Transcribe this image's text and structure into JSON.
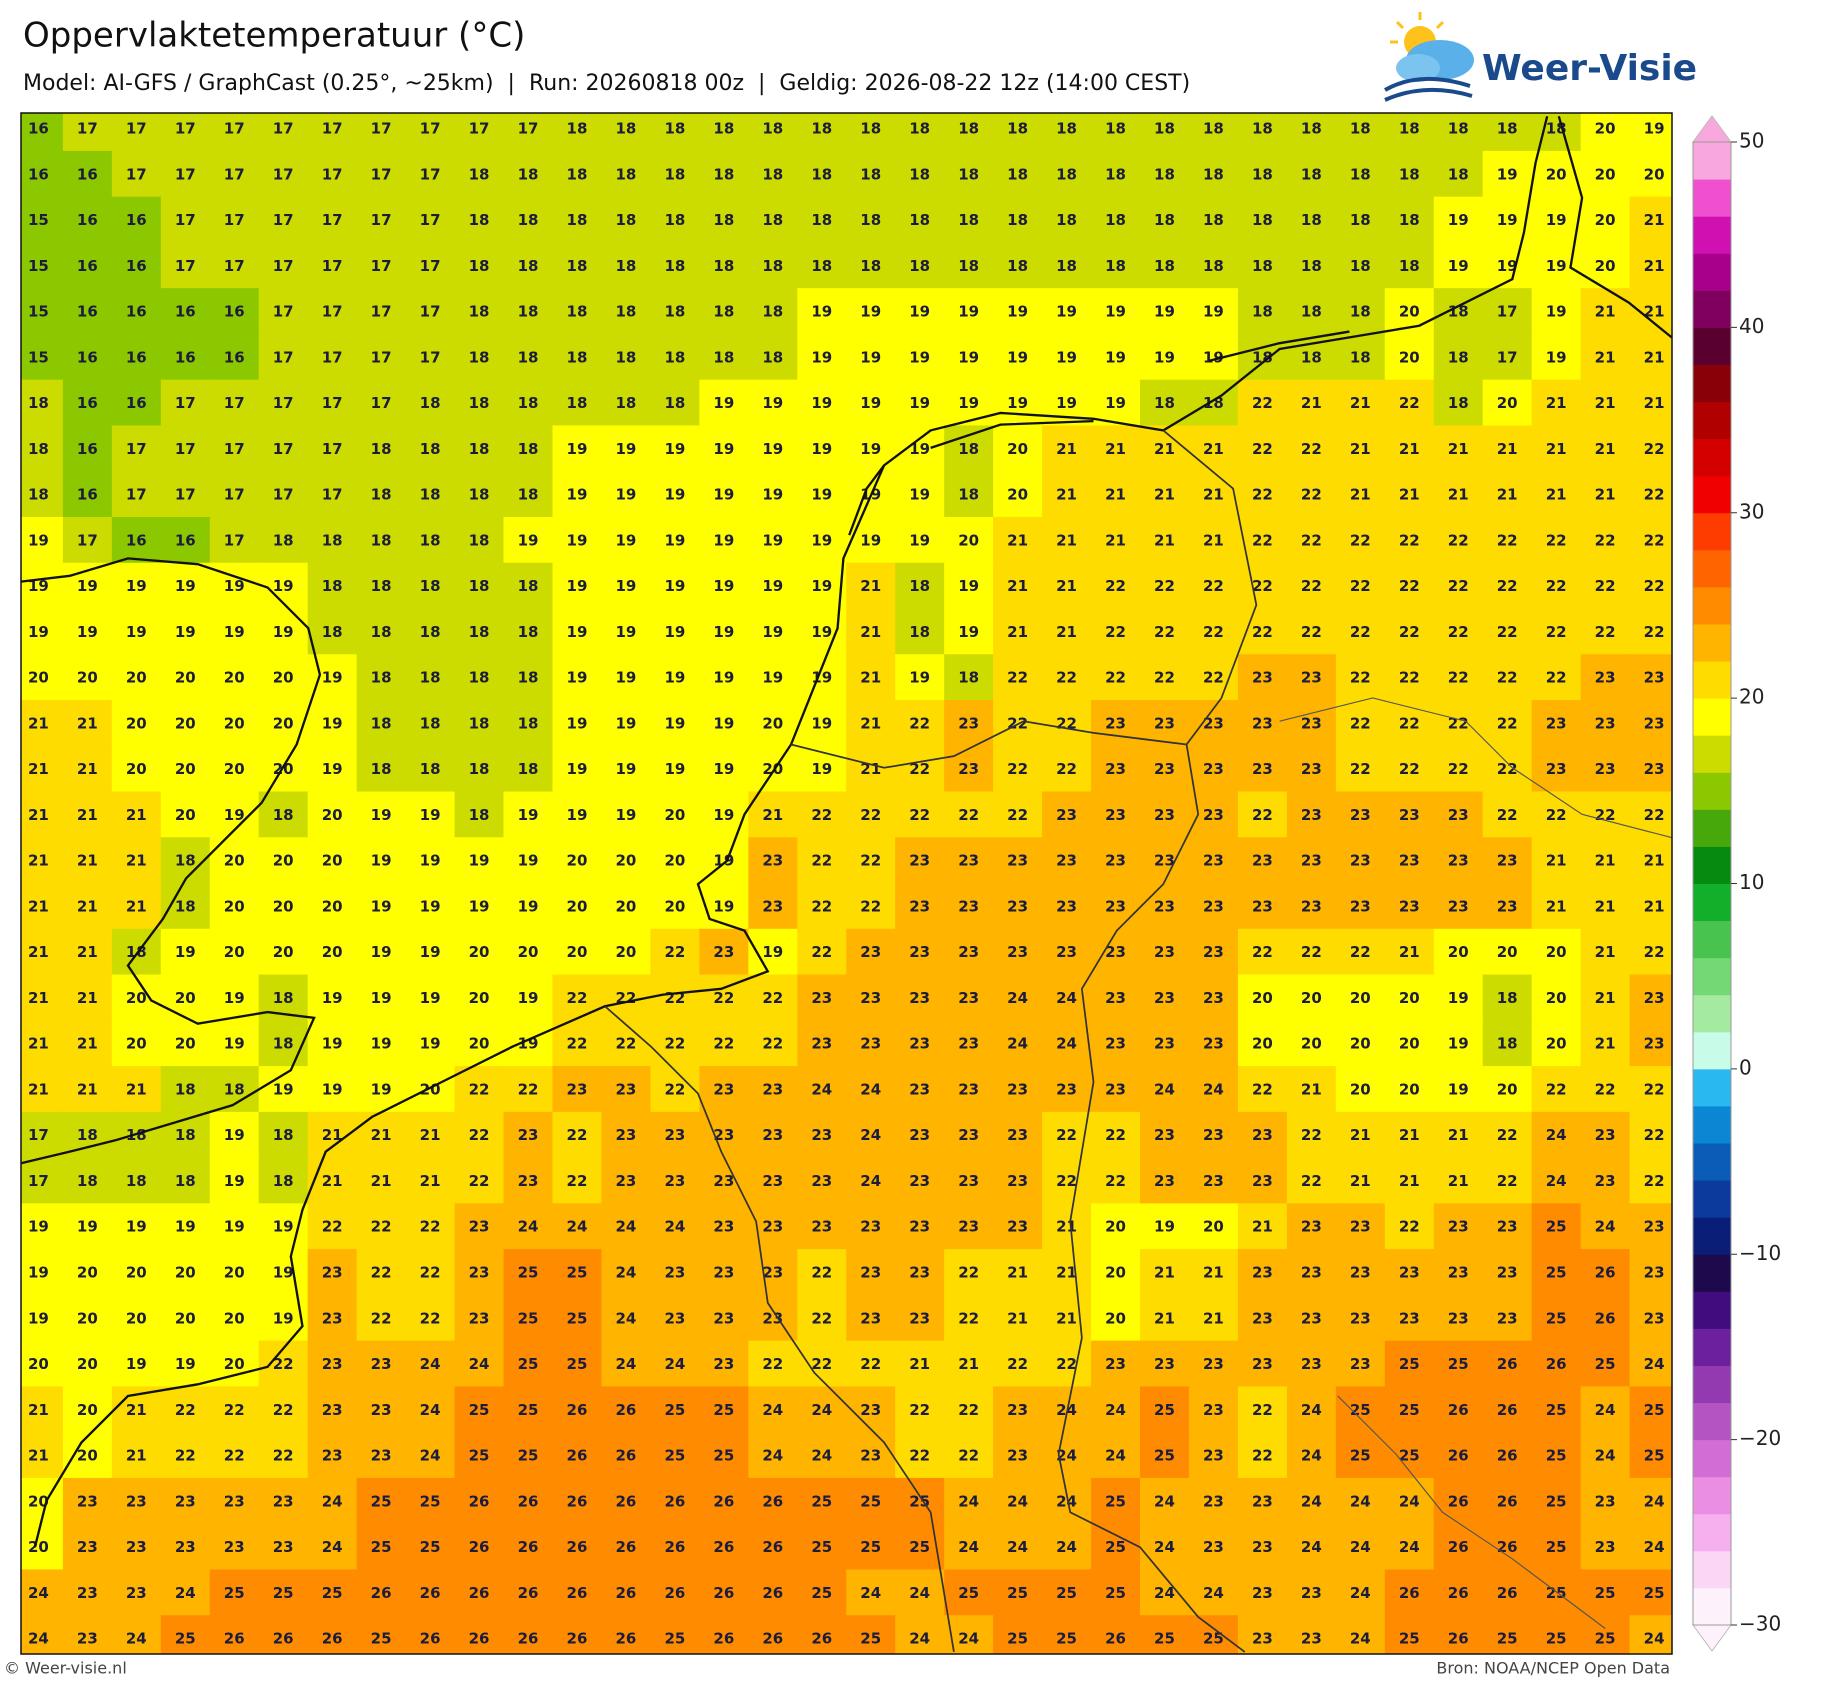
{
  "header": {
    "title": "Oppervlaktetemperatuur (°C)",
    "subtitle": "Model: AI-GFS / GraphCast (0.25°, ~25km)  |  Run: 20260818 00z  |  Geldig: 2026-08-22 12z (14:00 CEST)",
    "logo": "Weer-Visie"
  },
  "map": {
    "rows": [
      [
        16,
        17,
        17,
        17,
        17,
        17,
        17,
        17,
        17,
        17,
        17,
        18,
        18,
        18,
        18,
        18,
        18,
        18,
        18,
        18,
        18,
        18,
        18,
        18,
        18,
        18,
        18,
        18,
        18,
        18,
        18,
        18,
        20,
        19
      ],
      [
        16,
        16,
        17,
        17,
        17,
        17,
        17,
        17,
        17,
        18,
        18,
        18,
        18,
        18,
        18,
        18,
        18,
        18,
        18,
        18,
        18,
        18,
        18,
        18,
        18,
        18,
        18,
        18,
        18,
        18,
        19,
        20,
        20,
        20
      ],
      [
        15,
        16,
        16,
        17,
        17,
        17,
        17,
        17,
        17,
        18,
        18,
        18,
        18,
        18,
        18,
        18,
        18,
        18,
        18,
        18,
        18,
        18,
        18,
        18,
        18,
        18,
        18,
        18,
        18,
        19,
        19,
        19,
        20,
        21
      ],
      [
        15,
        16,
        16,
        17,
        17,
        17,
        17,
        17,
        17,
        18,
        18,
        18,
        18,
        18,
        18,
        18,
        18,
        18,
        18,
        18,
        18,
        18,
        18,
        18,
        18,
        18,
        18,
        18,
        18,
        19,
        19,
        19,
        20,
        21
      ],
      [
        15,
        16,
        16,
        16,
        16,
        17,
        17,
        17,
        17,
        18,
        18,
        18,
        18,
        18,
        18,
        18,
        19,
        19,
        19,
        19,
        19,
        19,
        19,
        19,
        19,
        18,
        18,
        18,
        20,
        18,
        17,
        19,
        21,
        21
      ],
      [
        15,
        16,
        16,
        16,
        16,
        17,
        17,
        17,
        17,
        18,
        18,
        18,
        18,
        18,
        18,
        18,
        19,
        19,
        19,
        19,
        19,
        19,
        19,
        19,
        19,
        18,
        18,
        18,
        20,
        18,
        17,
        19,
        21,
        21
      ],
      [
        18,
        16,
        16,
        17,
        17,
        17,
        17,
        17,
        18,
        18,
        18,
        18,
        18,
        18,
        19,
        19,
        19,
        19,
        19,
        19,
        19,
        19,
        19,
        18,
        18,
        22,
        21,
        21,
        22,
        18,
        20,
        21,
        21,
        21
      ],
      [
        18,
        16,
        17,
        17,
        17,
        17,
        17,
        18,
        18,
        18,
        18,
        19,
        19,
        19,
        19,
        19,
        19,
        19,
        19,
        18,
        20,
        21,
        21,
        21,
        21,
        22,
        22,
        21,
        21,
        21,
        21,
        21,
        21,
        22
      ],
      [
        18,
        16,
        17,
        17,
        17,
        17,
        17,
        18,
        18,
        18,
        18,
        19,
        19,
        19,
        19,
        19,
        19,
        19,
        19,
        18,
        20,
        21,
        21,
        21,
        21,
        22,
        22,
        21,
        21,
        21,
        21,
        21,
        21,
        22
      ],
      [
        19,
        17,
        16,
        16,
        17,
        18,
        18,
        18,
        18,
        18,
        19,
        19,
        19,
        19,
        19,
        19,
        19,
        19,
        19,
        20,
        21,
        21,
        21,
        21,
        21,
        22,
        22,
        22,
        22,
        22,
        22,
        22,
        22,
        22
      ],
      [
        19,
        19,
        19,
        19,
        19,
        19,
        18,
        18,
        18,
        18,
        18,
        19,
        19,
        19,
        19,
        19,
        19,
        21,
        18,
        19,
        21,
        21,
        22,
        22,
        22,
        22,
        22,
        22,
        22,
        22,
        22,
        22,
        22,
        22
      ],
      [
        19,
        19,
        19,
        19,
        19,
        19,
        18,
        18,
        18,
        18,
        18,
        19,
        19,
        19,
        19,
        19,
        19,
        21,
        18,
        19,
        21,
        21,
        22,
        22,
        22,
        22,
        22,
        22,
        22,
        22,
        22,
        22,
        22,
        22
      ],
      [
        20,
        20,
        20,
        20,
        20,
        20,
        19,
        18,
        18,
        18,
        18,
        19,
        19,
        19,
        19,
        19,
        19,
        21,
        19,
        18,
        22,
        22,
        22,
        22,
        22,
        23,
        23,
        22,
        22,
        22,
        22,
        22,
        23,
        23
      ],
      [
        21,
        21,
        20,
        20,
        20,
        20,
        19,
        18,
        18,
        18,
        18,
        19,
        19,
        19,
        19,
        20,
        19,
        21,
        22,
        23,
        22,
        22,
        23,
        23,
        23,
        23,
        23,
        22,
        22,
        22,
        22,
        23,
        23,
        23
      ],
      [
        21,
        21,
        20,
        20,
        20,
        20,
        19,
        18,
        18,
        18,
        18,
        19,
        19,
        19,
        19,
        20,
        19,
        21,
        22,
        23,
        22,
        22,
        23,
        23,
        23,
        23,
        23,
        22,
        22,
        22,
        22,
        23,
        23,
        23
      ],
      [
        21,
        21,
        21,
        20,
        19,
        18,
        20,
        19,
        19,
        18,
        19,
        19,
        19,
        20,
        19,
        21,
        22,
        22,
        22,
        22,
        22,
        23,
        23,
        23,
        23,
        22,
        23,
        23,
        23,
        23,
        22,
        22,
        22,
        22
      ],
      [
        21,
        21,
        21,
        18,
        20,
        20,
        20,
        19,
        19,
        19,
        19,
        20,
        20,
        20,
        19,
        23,
        22,
        22,
        23,
        23,
        23,
        23,
        23,
        23,
        23,
        23,
        23,
        23,
        23,
        23,
        23,
        21,
        21,
        21
      ],
      [
        21,
        21,
        21,
        18,
        20,
        20,
        20,
        19,
        19,
        19,
        19,
        20,
        20,
        20,
        19,
        23,
        22,
        22,
        23,
        23,
        23,
        23,
        23,
        23,
        23,
        23,
        23,
        23,
        23,
        23,
        23,
        21,
        21,
        21
      ],
      [
        21,
        21,
        18,
        19,
        20,
        20,
        20,
        19,
        19,
        20,
        20,
        20,
        20,
        22,
        23,
        19,
        22,
        23,
        23,
        23,
        23,
        23,
        23,
        23,
        23,
        22,
        22,
        22,
        21,
        20,
        20,
        20,
        21,
        22
      ],
      [
        21,
        21,
        20,
        20,
        19,
        18,
        19,
        19,
        19,
        20,
        19,
        22,
        22,
        22,
        22,
        22,
        23,
        23,
        23,
        23,
        24,
        24,
        23,
        23,
        23,
        20,
        20,
        20,
        20,
        19,
        18,
        20,
        21,
        23
      ],
      [
        21,
        21,
        20,
        20,
        19,
        18,
        19,
        19,
        19,
        20,
        19,
        22,
        22,
        22,
        22,
        22,
        23,
        23,
        23,
        23,
        24,
        24,
        23,
        23,
        23,
        20,
        20,
        20,
        20,
        19,
        18,
        20,
        21,
        23
      ],
      [
        21,
        21,
        21,
        18,
        18,
        19,
        19,
        19,
        20,
        22,
        22,
        23,
        23,
        22,
        23,
        23,
        24,
        24,
        23,
        23,
        23,
        23,
        23,
        24,
        24,
        22,
        21,
        20,
        20,
        19,
        20,
        22,
        22,
        22
      ],
      [
        17,
        18,
        18,
        18,
        19,
        18,
        21,
        21,
        21,
        22,
        23,
        22,
        23,
        23,
        23,
        23,
        23,
        24,
        23,
        23,
        23,
        22,
        22,
        23,
        23,
        23,
        22,
        21,
        21,
        21,
        22,
        24,
        23,
        22
      ],
      [
        17,
        18,
        18,
        18,
        19,
        18,
        21,
        21,
        21,
        22,
        23,
        22,
        23,
        23,
        23,
        23,
        23,
        24,
        23,
        23,
        23,
        22,
        22,
        23,
        23,
        23,
        22,
        21,
        21,
        21,
        22,
        24,
        23,
        22
      ],
      [
        19,
        19,
        19,
        19,
        19,
        19,
        22,
        22,
        22,
        23,
        24,
        24,
        24,
        24,
        23,
        23,
        23,
        23,
        23,
        23,
        23,
        21,
        20,
        19,
        20,
        21,
        23,
        23,
        22,
        23,
        23,
        25,
        24,
        23
      ],
      [
        19,
        20,
        20,
        20,
        20,
        19,
        23,
        22,
        22,
        23,
        25,
        25,
        24,
        23,
        23,
        23,
        22,
        23,
        23,
        22,
        21,
        21,
        20,
        21,
        21,
        23,
        23,
        23,
        23,
        23,
        23,
        25,
        26,
        23
      ],
      [
        19,
        20,
        20,
        20,
        20,
        19,
        23,
        22,
        22,
        23,
        25,
        25,
        24,
        23,
        23,
        23,
        22,
        23,
        23,
        22,
        21,
        21,
        20,
        21,
        21,
        23,
        23,
        23,
        23,
        23,
        23,
        25,
        26,
        23
      ],
      [
        20,
        20,
        19,
        19,
        20,
        22,
        23,
        23,
        24,
        24,
        25,
        25,
        24,
        24,
        23,
        22,
        22,
        22,
        21,
        21,
        22,
        22,
        23,
        23,
        23,
        23,
        23,
        23,
        25,
        25,
        26,
        26,
        25,
        24
      ],
      [
        21,
        20,
        21,
        22,
        22,
        22,
        23,
        23,
        24,
        25,
        25,
        26,
        26,
        25,
        25,
        24,
        24,
        23,
        22,
        22,
        23,
        24,
        24,
        25,
        23,
        22,
        24,
        25,
        25,
        26,
        26,
        25,
        24,
        25
      ],
      [
        21,
        20,
        21,
        22,
        22,
        22,
        23,
        23,
        24,
        25,
        25,
        26,
        26,
        25,
        25,
        24,
        24,
        23,
        22,
        22,
        23,
        24,
        24,
        25,
        23,
        22,
        24,
        25,
        25,
        26,
        26,
        25,
        24,
        25
      ],
      [
        20,
        23,
        23,
        23,
        23,
        23,
        24,
        25,
        25,
        26,
        26,
        26,
        26,
        26,
        26,
        26,
        25,
        25,
        25,
        24,
        24,
        24,
        25,
        24,
        23,
        23,
        24,
        24,
        24,
        26,
        26,
        25,
        23,
        24
      ],
      [
        20,
        23,
        23,
        23,
        23,
        23,
        24,
        25,
        25,
        26,
        26,
        26,
        26,
        26,
        26,
        26,
        25,
        25,
        25,
        24,
        24,
        24,
        25,
        24,
        23,
        23,
        24,
        24,
        24,
        26,
        26,
        25,
        23,
        24
      ],
      [
        24,
        23,
        23,
        24,
        25,
        25,
        25,
        26,
        26,
        26,
        26,
        26,
        26,
        26,
        26,
        26,
        25,
        24,
        24,
        25,
        25,
        25,
        25,
        24,
        24,
        23,
        23,
        24,
        26,
        26,
        26,
        25,
        25,
        25
      ],
      [
        24,
        23,
        24,
        25,
        26,
        26,
        26,
        25,
        26,
        26,
        26,
        26,
        26,
        25,
        26,
        26,
        26,
        25,
        24,
        24,
        25,
        25,
        26,
        25,
        25,
        23,
        23,
        24,
        25,
        26,
        25,
        25,
        25,
        24
      ]
    ]
  },
  "colorbar": {
    "range": [
      -30,
      50
    ],
    "ticks": [
      {
        "value": -30,
        "label": "−30"
      },
      {
        "value": -20,
        "label": "−20"
      },
      {
        "value": -10,
        "label": "−10"
      },
      0,
      10,
      20,
      30,
      40,
      50
    ],
    "colors": [
      "#fdf2fb",
      "#fcd6f5",
      "#f7b0ee",
      "#ea8ee4",
      "#d16dd5",
      "#b453c2",
      "#943ab0",
      "#6c209c",
      "#400c7e",
      "#1c0a4c",
      "#0a1e78",
      "#0a3a9c",
      "#0a5cb6",
      "#0a86d2",
      "#2ab8f0",
      "#c8fbe8",
      "#a4eaa0",
      "#74d874",
      "#48c350",
      "#12b02a",
      "#078a10",
      "#46a80a",
      "#8cc800",
      "#cddc00",
      "#ffff00",
      "#ffdc00",
      "#ffb400",
      "#ff8c00",
      "#ff6400",
      "#ff3c00",
      "#f00000",
      "#d40000",
      "#b00000",
      "#880008",
      "#5a0030",
      "#800060",
      "#a8008a",
      "#d010b0",
      "#f050d0",
      "#f8a8dc"
    ]
  },
  "footer": {
    "left": "© Weer-visie.nl",
    "right": "Bron: NOAA/NCEP Open Data"
  }
}
